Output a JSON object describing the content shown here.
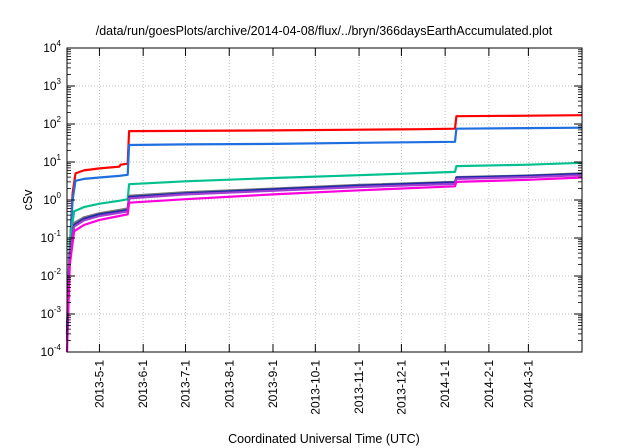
{
  "chart_data": {
    "type": "line",
    "title": "/data/run/goesPlots/archive/2014-04-08/flux/../bryn/366daysEarthAccumulated.plot",
    "xlabel": "Coordinated Universal Time (UTC)",
    "ylabel": "cSv",
    "yscale": "log",
    "ylim": [
      0.0001,
      10000
    ],
    "xlim": [
      "2013-04-08",
      "2014-04-08"
    ],
    "grid": true,
    "legend": "none",
    "x_ticks": [
      "2013-5-1",
      "2013-6-1",
      "2013-7-1",
      "2013-8-1",
      "2013-9-1",
      "2013-10-1",
      "2013-11-1",
      "2013-12-1",
      "2014-1-1",
      "2014-2-1",
      "2014-3-1"
    ],
    "y_ticks": [
      {
        "base": "10",
        "exp": "-4",
        "value": 0.0001
      },
      {
        "base": "10",
        "exp": "-3",
        "value": 0.001
      },
      {
        "base": "10",
        "exp": "-2",
        "value": 0.01
      },
      {
        "base": "10",
        "exp": "-1",
        "value": 0.1
      },
      {
        "base": "10",
        "exp": "0",
        "value": 1
      },
      {
        "base": "10",
        "exp": "1",
        "value": 10
      },
      {
        "base": "10",
        "exp": "2",
        "value": 100
      },
      {
        "base": "10",
        "exp": "3",
        "value": 1000
      },
      {
        "base": "10",
        "exp": "4",
        "value": 10000
      }
    ],
    "series": [
      {
        "color": "#ff0000",
        "points": [
          [
            "2013-04-08",
            0.0002
          ],
          [
            "2013-04-10",
            0.05
          ],
          [
            "2013-04-12",
            1.5
          ],
          [
            "2013-04-14",
            5.0
          ],
          [
            "2013-04-20",
            6.0
          ],
          [
            "2013-05-01",
            6.8
          ],
          [
            "2013-05-15",
            7.5
          ],
          [
            "2013-05-16",
            8.5
          ],
          [
            "2013-05-21",
            9.0
          ],
          [
            "2013-05-22",
            65
          ],
          [
            "2013-07-01",
            66
          ],
          [
            "2013-09-01",
            68
          ],
          [
            "2013-11-01",
            71
          ],
          [
            "2013-12-15",
            73
          ],
          [
            "2014-01-08",
            75
          ],
          [
            "2014-01-09",
            160
          ],
          [
            "2014-03-01",
            165
          ],
          [
            "2014-04-08",
            170
          ]
        ]
      },
      {
        "color": "#1f6fe0",
        "points": [
          [
            "2013-04-08",
            0.0003
          ],
          [
            "2013-04-10",
            0.05
          ],
          [
            "2013-04-12",
            1.0
          ],
          [
            "2013-04-14",
            3.2
          ],
          [
            "2013-04-20",
            3.6
          ],
          [
            "2013-05-01",
            3.9
          ],
          [
            "2013-05-15",
            4.3
          ],
          [
            "2013-05-21",
            4.6
          ],
          [
            "2013-05-22",
            28
          ],
          [
            "2013-07-01",
            29
          ],
          [
            "2013-09-01",
            30
          ],
          [
            "2013-11-01",
            32
          ],
          [
            "2014-01-08",
            34
          ],
          [
            "2014-01-09",
            75
          ],
          [
            "2014-03-01",
            78
          ],
          [
            "2014-04-08",
            80
          ]
        ]
      },
      {
        "color": "#00c090",
        "points": [
          [
            "2013-04-08",
            0.0005
          ],
          [
            "2013-04-10",
            0.08
          ],
          [
            "2013-04-13",
            0.5
          ],
          [
            "2013-04-20",
            0.65
          ],
          [
            "2013-05-01",
            0.8
          ],
          [
            "2013-05-15",
            0.95
          ],
          [
            "2013-05-21",
            1.05
          ],
          [
            "2013-05-22",
            2.6
          ],
          [
            "2013-07-01",
            3.1
          ],
          [
            "2013-09-01",
            3.8
          ],
          [
            "2013-11-01",
            4.5
          ],
          [
            "2014-01-08",
            5.5
          ],
          [
            "2014-01-09",
            7.8
          ],
          [
            "2014-03-01",
            8.5
          ],
          [
            "2014-04-08",
            9.5
          ]
        ]
      },
      {
        "color": "#7a7a7a",
        "points": [
          [
            "2013-04-08",
            0.0003
          ],
          [
            "2013-04-10",
            0.04
          ],
          [
            "2013-04-13",
            0.25
          ],
          [
            "2013-04-20",
            0.35
          ],
          [
            "2013-05-01",
            0.45
          ],
          [
            "2013-05-15",
            0.55
          ],
          [
            "2013-05-21",
            0.6
          ],
          [
            "2013-05-22",
            1.3
          ],
          [
            "2013-07-01",
            1.6
          ],
          [
            "2013-09-01",
            2.0
          ],
          [
            "2013-11-01",
            2.5
          ],
          [
            "2014-01-08",
            3.0
          ],
          [
            "2014-01-09",
            4.0
          ],
          [
            "2014-03-01",
            4.4
          ],
          [
            "2014-04-08",
            5.0
          ]
        ]
      },
      {
        "color": "#1a2aa8",
        "points": [
          [
            "2013-04-08",
            0.0003
          ],
          [
            "2013-04-10",
            0.035
          ],
          [
            "2013-04-13",
            0.22
          ],
          [
            "2013-04-20",
            0.32
          ],
          [
            "2013-05-01",
            0.42
          ],
          [
            "2013-05-15",
            0.5
          ],
          [
            "2013-05-21",
            0.55
          ],
          [
            "2013-05-22",
            1.2
          ],
          [
            "2013-07-01",
            1.5
          ],
          [
            "2013-09-01",
            1.9
          ],
          [
            "2013-11-01",
            2.4
          ],
          [
            "2014-01-08",
            2.9
          ],
          [
            "2014-01-09",
            3.9
          ],
          [
            "2014-03-01",
            4.3
          ],
          [
            "2014-04-08",
            4.9
          ]
        ]
      },
      {
        "color": "#a040d0",
        "points": [
          [
            "2013-04-08",
            0.0002
          ],
          [
            "2013-04-10",
            0.03
          ],
          [
            "2013-04-13",
            0.2
          ],
          [
            "2013-04-20",
            0.29
          ],
          [
            "2013-05-01",
            0.38
          ],
          [
            "2013-05-15",
            0.46
          ],
          [
            "2013-05-21",
            0.5
          ],
          [
            "2013-05-22",
            1.1
          ],
          [
            "2013-07-01",
            1.4
          ],
          [
            "2013-09-01",
            1.75
          ],
          [
            "2013-11-01",
            2.2
          ],
          [
            "2014-01-08",
            2.65
          ],
          [
            "2014-01-09",
            3.6
          ],
          [
            "2014-03-01",
            4.0
          ],
          [
            "2014-04-08",
            4.5
          ]
        ]
      },
      {
        "color": "#ff00dd",
        "points": [
          [
            "2013-04-08",
            0.0001
          ],
          [
            "2013-04-10",
            0.02
          ],
          [
            "2013-04-13",
            0.15
          ],
          [
            "2013-04-20",
            0.22
          ],
          [
            "2013-05-01",
            0.3
          ],
          [
            "2013-05-15",
            0.38
          ],
          [
            "2013-05-21",
            0.42
          ],
          [
            "2013-05-22",
            0.85
          ],
          [
            "2013-07-01",
            1.05
          ],
          [
            "2013-09-01",
            1.4
          ],
          [
            "2013-11-01",
            1.8
          ],
          [
            "2014-01-08",
            2.3
          ],
          [
            "2014-01-09",
            3.0
          ],
          [
            "2014-03-01",
            3.4
          ],
          [
            "2014-04-08",
            3.9
          ]
        ]
      }
    ]
  }
}
